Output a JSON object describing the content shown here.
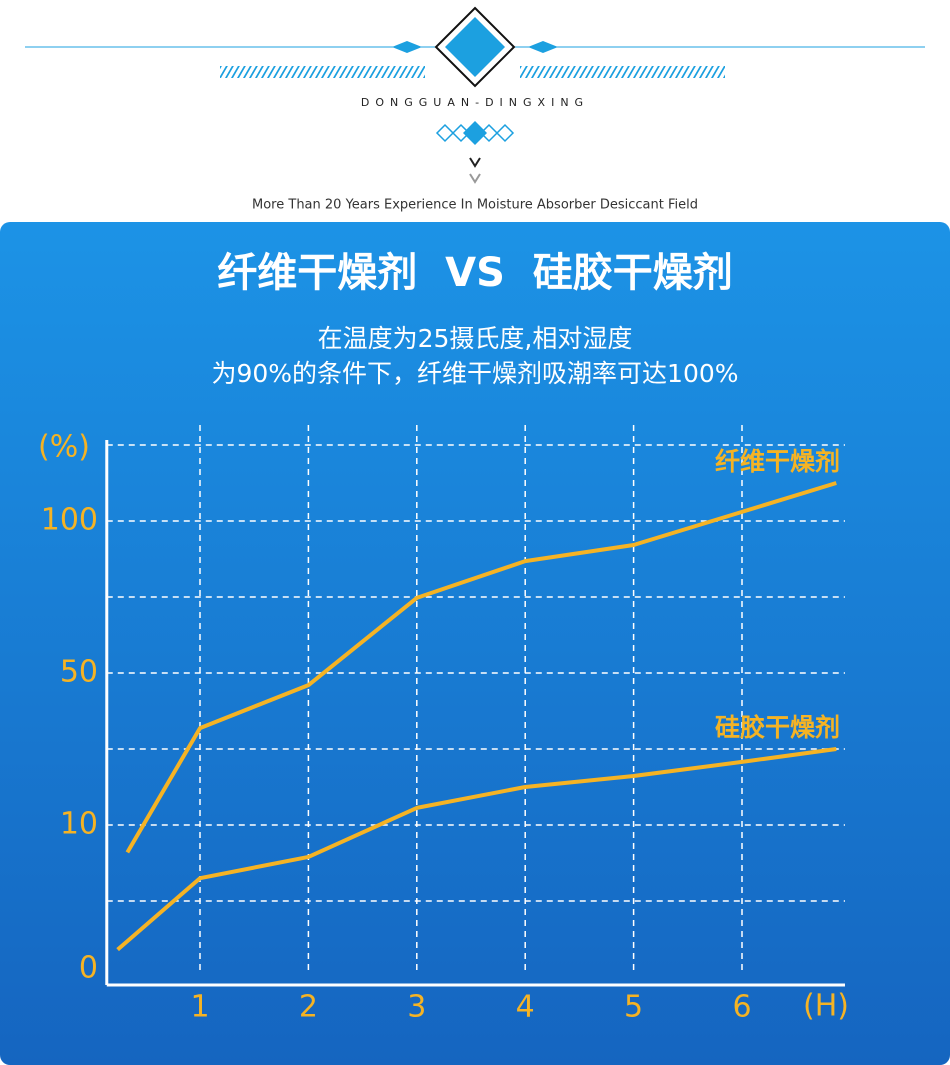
{
  "header": {
    "brand": "DONGGUAN-DINGXING",
    "tagline": "More Than 20 Years Experience In Moisture Absorber Desiccant Field"
  },
  "chart_data": {
    "type": "line",
    "title": "纤维干燥剂  VS  硅胶干燥剂",
    "subtitle": [
      "在温度为25摄氏度,相对湿度",
      "为90%的条件下，纤维干燥剂吸潮率可达100%"
    ],
    "y_label": "(%)",
    "x_label": "(H)",
    "xlim": [
      0.14,
      6.95
    ],
    "xticks": [
      1,
      2,
      3,
      4,
      5,
      6
    ],
    "ylim": [
      0,
      125
    ],
    "yticks": [
      0,
      10,
      50,
      100
    ],
    "ygrid": [
      5,
      10,
      30,
      50,
      75,
      100,
      125
    ],
    "grid": true,
    "series": [
      {
        "name": "纤维干燥剂",
        "color": "#f5b324",
        "x": [
          0.33,
          1,
          2,
          3,
          4,
          5,
          6,
          6.87
        ],
        "values": [
          8.2,
          35.5,
          46.8,
          74.7,
          86.8,
          92.1,
          103,
          112.5
        ]
      },
      {
        "name": "硅胶干燥剂",
        "color": "#f5b324",
        "x": [
          0.24,
          1,
          2,
          3,
          4,
          5,
          6,
          6.87
        ],
        "values": [
          1.8,
          6.5,
          7.9,
          14.5,
          20,
          22.9,
          26.6,
          30
        ]
      }
    ]
  }
}
